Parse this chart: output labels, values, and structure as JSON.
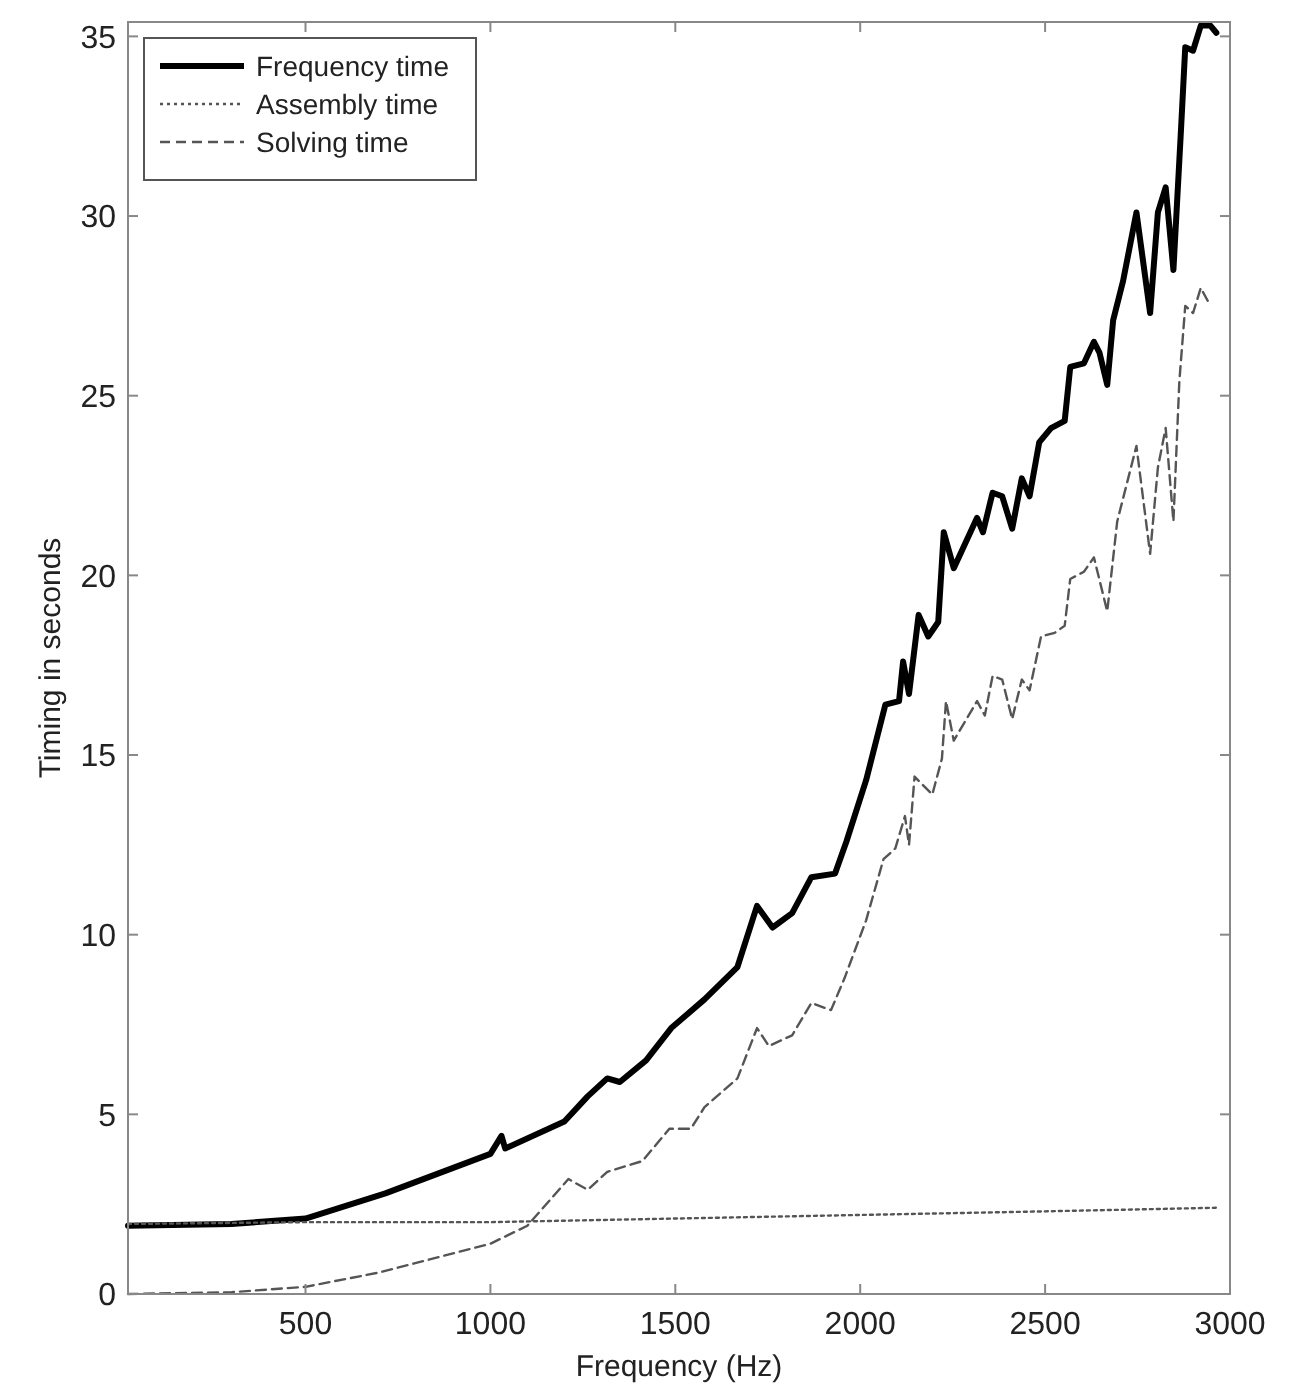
{
  "chart_data": {
    "type": "line",
    "xlabel": "Frequency (Hz)",
    "ylabel": "Timing in seconds",
    "xlim": [
      20,
      3000
    ],
    "ylim": [
      0,
      35.4
    ],
    "xticks": [
      500,
      1000,
      1500,
      2000,
      2500,
      3000
    ],
    "yticks": [
      0,
      5,
      10,
      15,
      20,
      25,
      30,
      35
    ],
    "grid": false,
    "legend": "top left",
    "marker": "none",
    "series": [
      {
        "name": "Frequency time",
        "color": "#000000",
        "line_style": "solid",
        "x": [
          20,
          300,
          500,
          716,
          1000,
          1030,
          1040,
          1200,
          1263,
          1316,
          1350,
          1421,
          1489,
          1579,
          1668,
          1721,
          1763,
          1816,
          1868,
          1932,
          1963,
          2016,
          2068,
          2105,
          2116,
          2132,
          2158,
          2184,
          2211,
          2226,
          2253,
          2316,
          2332,
          2358,
          2384,
          2411,
          2437,
          2458,
          2484,
          2516,
          2553,
          2568,
          2605,
          2632,
          2647,
          2668,
          2684,
          2711,
          2747,
          2784,
          2805,
          2826,
          2847,
          2868,
          2879,
          2900,
          2921,
          2947,
          2963
        ],
        "values": [
          1.9,
          1.95,
          2.1,
          2.8,
          3.9,
          4.4,
          4.05,
          4.8,
          5.5,
          6.0,
          5.9,
          6.5,
          7.4,
          8.2,
          9.1,
          10.8,
          10.2,
          10.6,
          11.6,
          11.7,
          12.6,
          14.3,
          16.4,
          16.5,
          17.6,
          16.7,
          18.9,
          18.3,
          18.7,
          21.2,
          20.2,
          21.6,
          21.2,
          22.3,
          22.2,
          21.3,
          22.7,
          22.2,
          23.7,
          24.1,
          24.3,
          25.8,
          25.9,
          26.5,
          26.2,
          25.3,
          27.1,
          28.2,
          30.1,
          27.3,
          30.1,
          30.8,
          28.5,
          32.5,
          34.7,
          34.6,
          35.3,
          35.3,
          35.1
        ]
      },
      {
        "name": "Assembly time",
        "color": "#555555",
        "line_style": "dotted",
        "x": [
          20,
          500,
          1000,
          1500,
          2000,
          2500,
          2963
        ],
        "values": [
          1.95,
          2.0,
          2.0,
          2.1,
          2.2,
          2.3,
          2.4
        ]
      },
      {
        "name": "Solving time",
        "color": "#555555",
        "line_style": "dashed",
        "x": [
          20,
          300,
          500,
          700,
          1000,
          1100,
          1211,
          1263,
          1316,
          1411,
          1484,
          1542,
          1579,
          1668,
          1721,
          1753,
          1816,
          1868,
          1921,
          1958,
          2016,
          2063,
          2095,
          2121,
          2132,
          2147,
          2195,
          2221,
          2232,
          2253,
          2316,
          2337,
          2358,
          2384,
          2411,
          2437,
          2458,
          2489,
          2526,
          2553,
          2568,
          2605,
          2632,
          2668,
          2695,
          2747,
          2784,
          2805,
          2826,
          2847,
          2863,
          2879,
          2900,
          2921,
          2947
        ],
        "values": [
          0.0,
          0.05,
          0.2,
          0.6,
          1.4,
          1.9,
          3.2,
          2.9,
          3.4,
          3.7,
          4.6,
          4.6,
          5.2,
          6.0,
          7.4,
          6.9,
          7.2,
          8.1,
          7.9,
          8.8,
          10.4,
          12.1,
          12.4,
          13.3,
          12.5,
          14.4,
          13.9,
          14.9,
          16.5,
          15.4,
          16.5,
          16.1,
          17.2,
          17.1,
          16.0,
          17.1,
          16.8,
          18.3,
          18.4,
          18.6,
          19.9,
          20.1,
          20.5,
          19.0,
          21.5,
          23.6,
          20.6,
          23.0,
          24.1,
          21.5,
          25.4,
          27.5,
          27.3,
          28.0,
          27.5
        ]
      }
    ]
  }
}
